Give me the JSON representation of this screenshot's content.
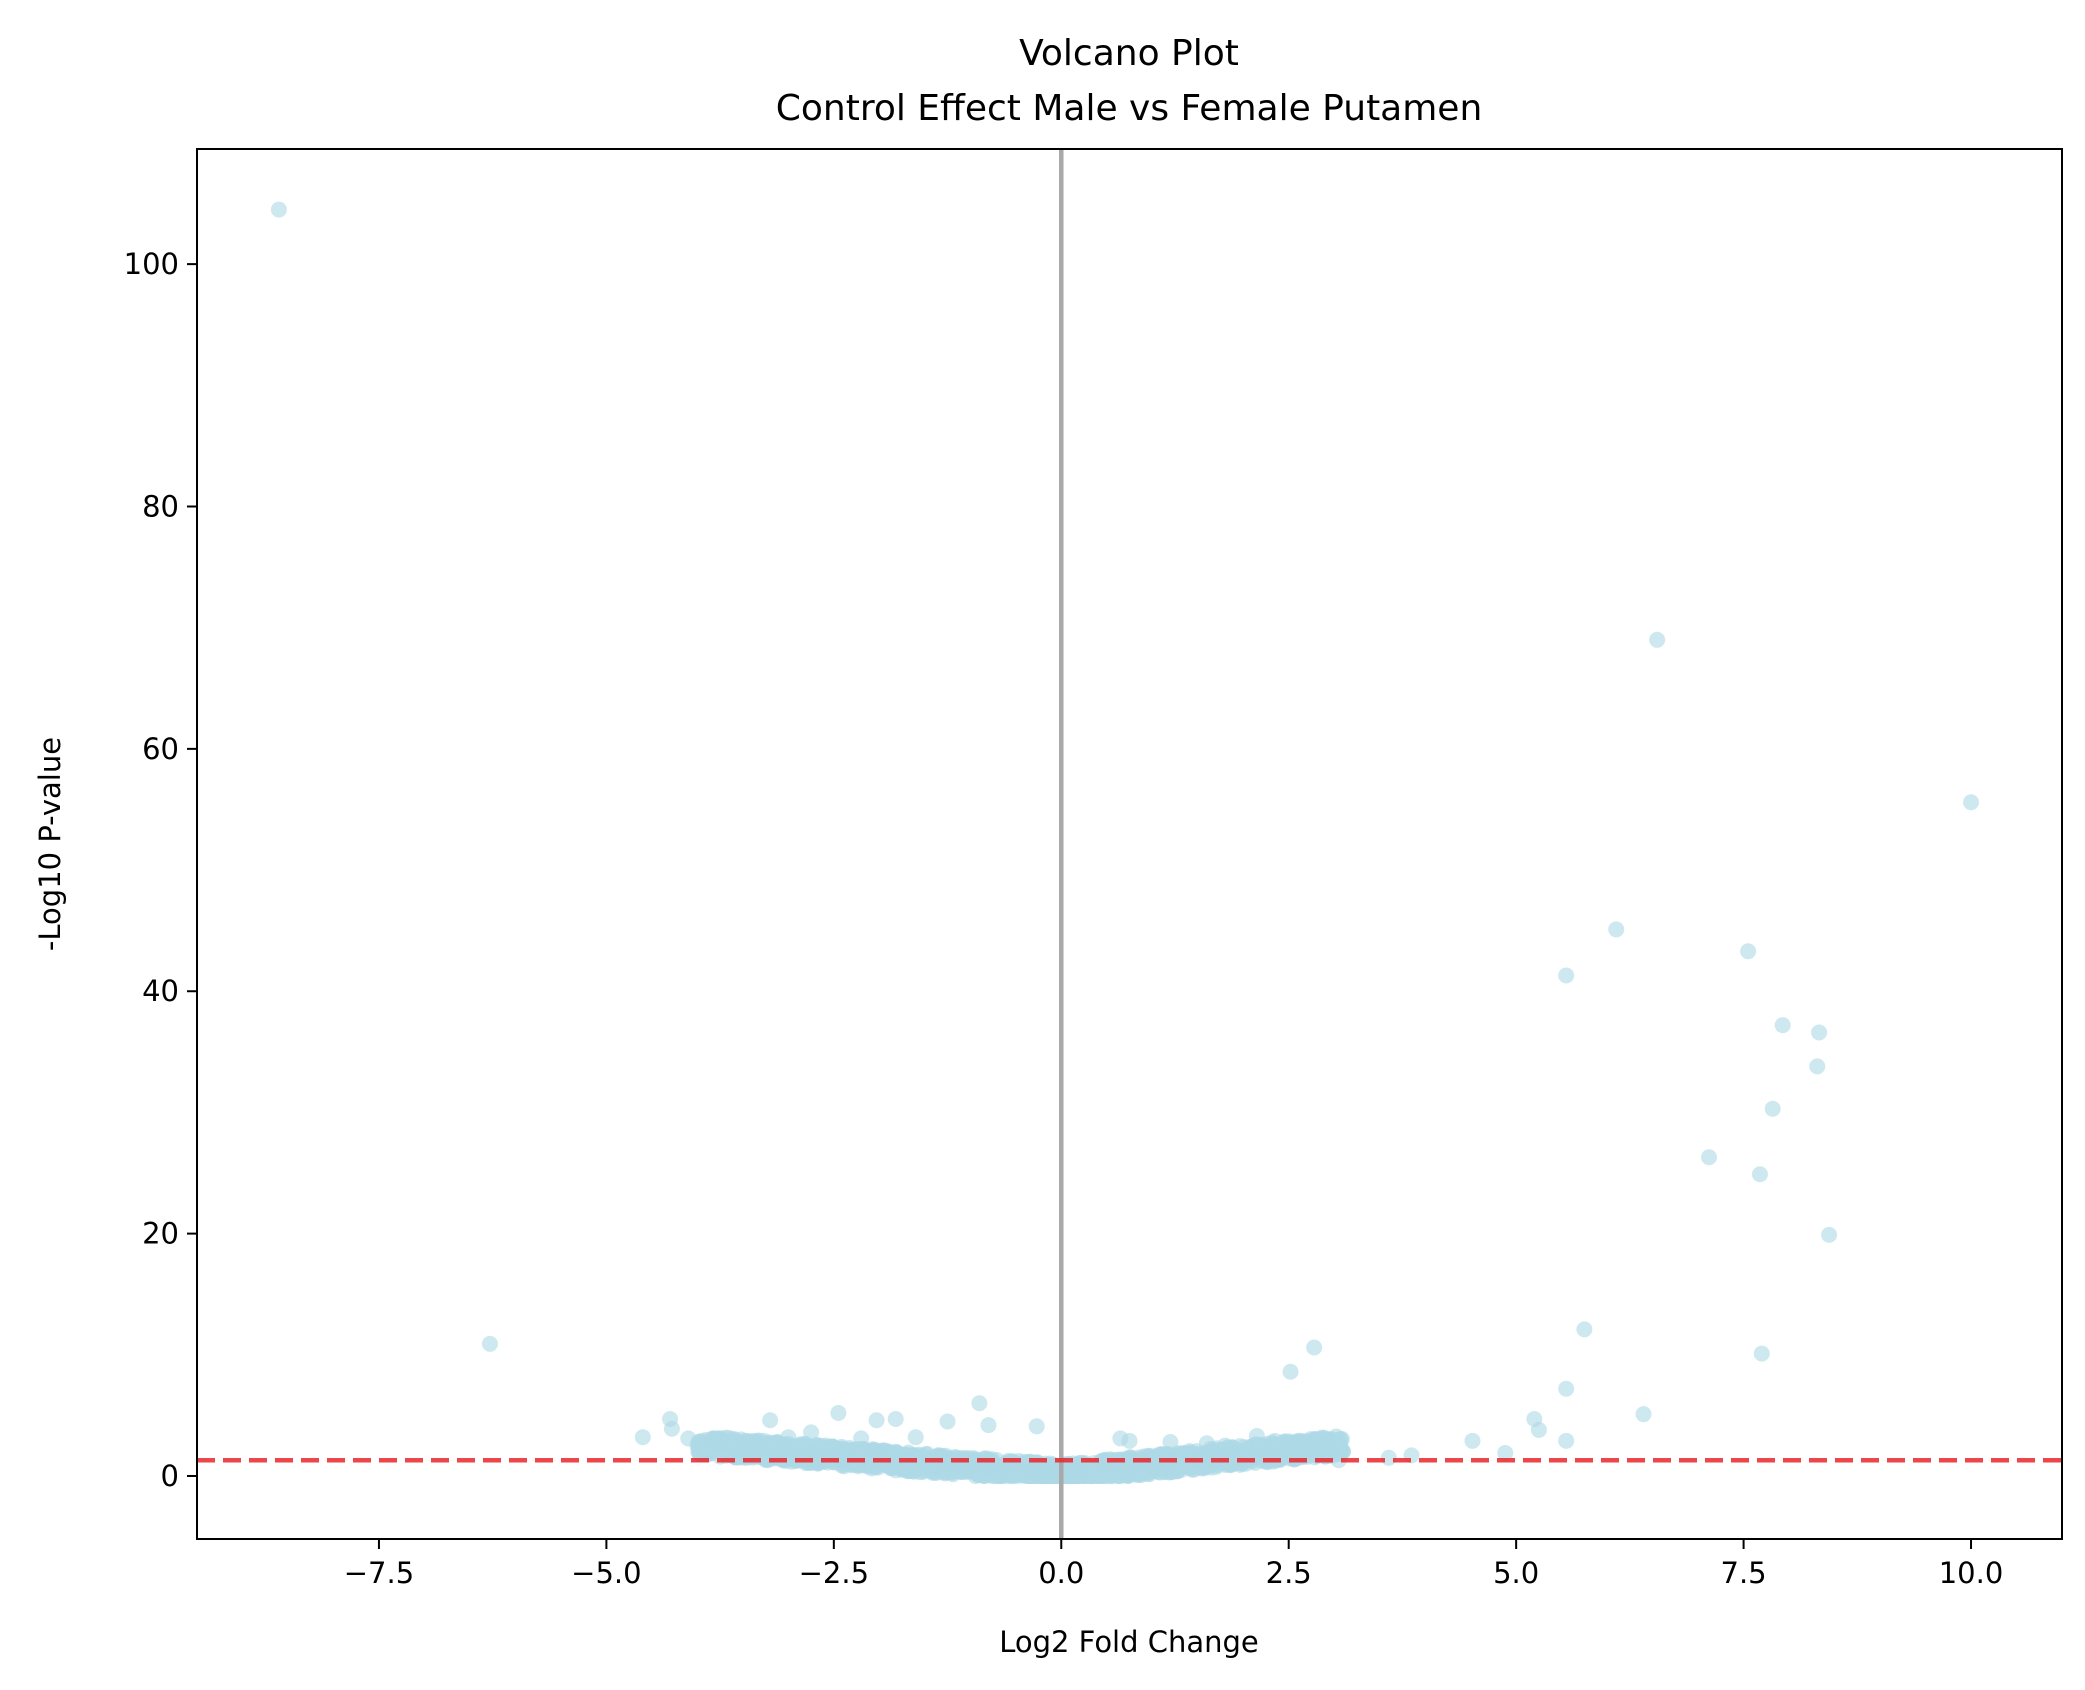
{
  "chart_data": {
    "type": "scatter",
    "title": "Volcano Plot",
    "subtitle": "Control Effect Male vs Female Putamen",
    "xlabel": "Log2 Fold Change",
    "ylabel": "-Log10 P-value",
    "xlim": [
      -9.5,
      11.0
    ],
    "ylim": [
      -5.2,
      109.5
    ],
    "xticks": [
      -7.5,
      -5.0,
      -2.5,
      0.0,
      2.5,
      5.0,
      7.5,
      10.0
    ],
    "xtick_labels": [
      "−7.5",
      "−5.0",
      "−2.5",
      "0.0",
      "2.5",
      "5.0",
      "7.5",
      "10.0"
    ],
    "yticks": [
      0,
      20,
      40,
      60,
      80,
      100
    ],
    "ytick_labels": [
      "0",
      "20",
      "40",
      "60",
      "80",
      "100"
    ],
    "grid": false,
    "point_color": "#add8e6",
    "threshold_line": {
      "y": 1.3,
      "color": "#e8262a",
      "style": "dashed"
    },
    "zero_line": {
      "x": 0.0,
      "color": "#a9a9a9"
    },
    "points": [
      {
        "x": -8.6,
        "y": 104.5
      },
      {
        "x": -6.28,
        "y": 10.9
      },
      {
        "x": -4.6,
        "y": 3.2
      },
      {
        "x": -4.3,
        "y": 4.7
      },
      {
        "x": -4.28,
        "y": 3.9
      },
      {
        "x": -4.1,
        "y": 3.1
      },
      {
        "x": -3.9,
        "y": 2.6
      },
      {
        "x": -3.75,
        "y": 1.6
      },
      {
        "x": -3.55,
        "y": 2.3
      },
      {
        "x": -3.2,
        "y": 4.6
      },
      {
        "x": -3.0,
        "y": 3.2
      },
      {
        "x": -2.75,
        "y": 3.6
      },
      {
        "x": -2.45,
        "y": 5.2
      },
      {
        "x": -2.2,
        "y": 3.1
      },
      {
        "x": -2.03,
        "y": 4.6
      },
      {
        "x": -1.82,
        "y": 4.7
      },
      {
        "x": -1.6,
        "y": 3.2
      },
      {
        "x": -1.25,
        "y": 4.5
      },
      {
        "x": -0.9,
        "y": 6.0
      },
      {
        "x": -0.8,
        "y": 4.2
      },
      {
        "x": -0.27,
        "y": 4.1
      },
      {
        "x": 0.65,
        "y": 3.1
      },
      {
        "x": 0.75,
        "y": 2.9
      },
      {
        "x": 1.2,
        "y": 2.8
      },
      {
        "x": 1.6,
        "y": 2.7
      },
      {
        "x": 1.8,
        "y": 2.5
      },
      {
        "x": 2.15,
        "y": 3.3
      },
      {
        "x": 2.35,
        "y": 2.9
      },
      {
        "x": 2.52,
        "y": 8.6
      },
      {
        "x": 2.68,
        "y": 2.0
      },
      {
        "x": 2.78,
        "y": 10.6
      },
      {
        "x": 2.9,
        "y": 1.6
      },
      {
        "x": 3.05,
        "y": 1.3
      },
      {
        "x": 3.6,
        "y": 1.5
      },
      {
        "x": 3.85,
        "y": 1.7
      },
      {
        "x": 4.52,
        "y": 2.9
      },
      {
        "x": 4.88,
        "y": 1.9
      },
      {
        "x": 5.2,
        "y": 4.7
      },
      {
        "x": 5.25,
        "y": 3.8
      },
      {
        "x": 5.55,
        "y": 2.9
      },
      {
        "x": 5.55,
        "y": 7.2
      },
      {
        "x": 5.55,
        "y": 41.3
      },
      {
        "x": 5.75,
        "y": 12.1
      },
      {
        "x": 6.1,
        "y": 45.1
      },
      {
        "x": 6.4,
        "y": 5.1
      },
      {
        "x": 6.55,
        "y": 69.0
      },
      {
        "x": 7.12,
        "y": 26.3
      },
      {
        "x": 7.55,
        "y": 43.3
      },
      {
        "x": 7.68,
        "y": 24.9
      },
      {
        "x": 7.7,
        "y": 10.1
      },
      {
        "x": 7.82,
        "y": 30.3
      },
      {
        "x": 7.93,
        "y": 37.2
      },
      {
        "x": 8.31,
        "y": 33.8
      },
      {
        "x": 8.33,
        "y": 36.6
      },
      {
        "x": 8.44,
        "y": 19.9
      },
      {
        "x": 10.0,
        "y": 55.6
      }
    ],
    "dense_cluster": {
      "x_range": [
        -4.0,
        3.1
      ],
      "y_range": [
        0.0,
        3.4
      ],
      "shape": "v-shaped band; -log10 p rises with |log2 fold change|"
    }
  }
}
